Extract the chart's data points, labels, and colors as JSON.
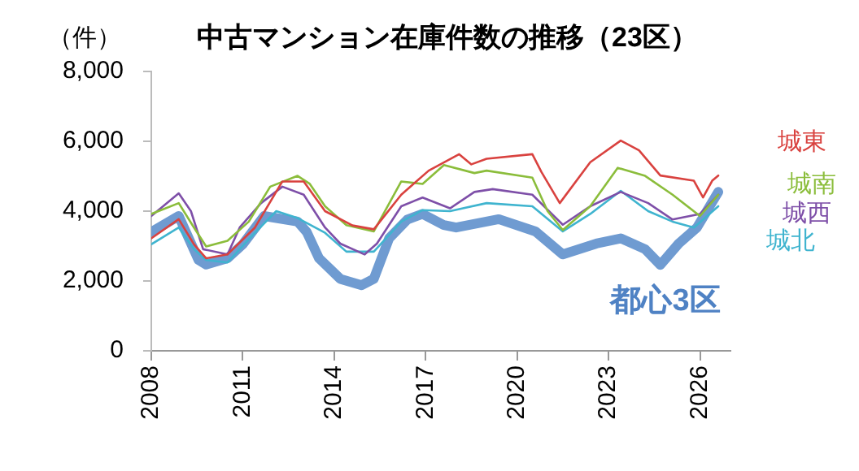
{
  "chart_data": {
    "type": "line",
    "title": "中古マンション在庫件数の推移（23区）",
    "ylabel": "（件）",
    "xlim": [
      2008,
      2027
    ],
    "xticks": [
      2008,
      2011,
      2014,
      2017,
      2020,
      2023,
      2026
    ],
    "ylim": [
      0,
      8000
    ],
    "yticks": [
      {
        "value": 0,
        "label": "0"
      },
      {
        "value": 2000,
        "label": "2,000"
      },
      {
        "value": 4000,
        "label": "4,000"
      },
      {
        "value": 6000,
        "label": "6,000"
      },
      {
        "value": 8000,
        "label": "8,000"
      }
    ],
    "grid": false,
    "legend": false,
    "marker": "none",
    "line_style": "solid",
    "series": [
      {
        "name": "城東",
        "color": "#d9423f",
        "x": [
          2008,
          2008.9,
          2009.4,
          2009.8,
          2010.5,
          2011.4,
          2012.3,
          2013,
          2013.7,
          2014.6,
          2015.3,
          2016.2,
          2017.1,
          2018.1,
          2018.5,
          2019,
          2020.5,
          2020.8,
          2021.4,
          2022.4,
          2023.4,
          2024,
          2024.7,
          2025.8,
          2026.1,
          2026.4,
          2026.6
        ],
        "values": [
          3220,
          3770,
          3050,
          2650,
          2760,
          3530,
          4850,
          4850,
          4000,
          3590,
          3480,
          4470,
          5160,
          5630,
          5340,
          5500,
          5630,
          5120,
          4230,
          5400,
          6020,
          5740,
          5020,
          4870,
          4390,
          4870,
          5020
        ]
      },
      {
        "name": "城南",
        "color": "#8bbd3b",
        "x": [
          2008,
          2008.9,
          2009.4,
          2009.8,
          2010.5,
          2011.2,
          2011.9,
          2012.8,
          2013.2,
          2013.7,
          2014.4,
          2015.3,
          2016.2,
          2016.9,
          2017.6,
          2018.6,
          2019,
          2020.5,
          2021,
          2021.5,
          2022.4,
          2023.3,
          2024.2,
          2025.1,
          2026,
          2026.6
        ],
        "values": [
          3920,
          4230,
          3530,
          2990,
          3150,
          3700,
          4700,
          5010,
          4780,
          4140,
          3600,
          3420,
          4850,
          4780,
          5320,
          5090,
          5160,
          4960,
          4000,
          3460,
          4140,
          5240,
          5010,
          4470,
          3860,
          4470
        ]
      },
      {
        "name": "城西",
        "color": "#7e4fa8",
        "x": [
          2008,
          2008.9,
          2009.3,
          2009.7,
          2010.5,
          2010.9,
          2011.6,
          2012.3,
          2013,
          2013.7,
          2014.2,
          2015,
          2015.4,
          2016.2,
          2016.9,
          2017.8,
          2018.6,
          2019.2,
          2020.5,
          2021.5,
          2022.4,
          2023.4,
          2024.3,
          2025.1,
          2026,
          2026.6
        ],
        "values": [
          3860,
          4510,
          4000,
          2910,
          2760,
          3530,
          4230,
          4700,
          4470,
          3530,
          3070,
          2760,
          3070,
          4140,
          4390,
          4080,
          4550,
          4630,
          4470,
          3610,
          4140,
          4550,
          4230,
          3760,
          3920,
          4470
        ]
      },
      {
        "name": "城北",
        "color": "#3fb4cf",
        "x": [
          2008,
          2008.9,
          2009.4,
          2009.8,
          2010.5,
          2011.4,
          2012.1,
          2012.8,
          2013.7,
          2014.4,
          2015.3,
          2016.2,
          2016.9,
          2017.8,
          2019,
          2020.5,
          2021.5,
          2022.4,
          2023.4,
          2024.3,
          2025.1,
          2025.8,
          2026.6
        ],
        "values": [
          3050,
          3530,
          2910,
          2600,
          2530,
          3380,
          4000,
          3800,
          3380,
          2840,
          2840,
          3700,
          4030,
          4000,
          4230,
          4140,
          3420,
          3920,
          4580,
          4000,
          3700,
          3530,
          4140
        ]
      },
      {
        "name": "都心3区",
        "color": "#6f9bd1",
        "x": [
          2008,
          2008.9,
          2009.55,
          2009.8,
          2010.5,
          2011,
          2011.7,
          2012.8,
          2013.1,
          2013.5,
          2014.2,
          2014.9,
          2015.3,
          2015.8,
          2016.4,
          2016.9,
          2017.6,
          2018,
          2019.4,
          2020.6,
          2021.5,
          2022.6,
          2023.4,
          2024.2,
          2024.7,
          2025.3,
          2025.9,
          2026.6
        ],
        "values": [
          3400,
          3860,
          2600,
          2470,
          2650,
          3050,
          3860,
          3700,
          3400,
          2650,
          2060,
          1880,
          2060,
          3220,
          3760,
          3920,
          3600,
          3530,
          3770,
          3420,
          2760,
          3070,
          3220,
          2910,
          2460,
          3070,
          3530,
          4550
        ]
      }
    ]
  }
}
